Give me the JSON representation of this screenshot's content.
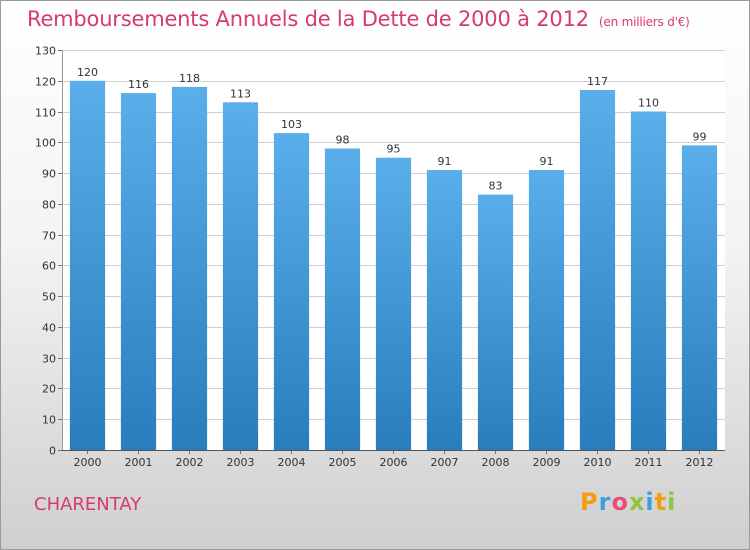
{
  "title": {
    "main": "Remboursements Annuels de la Dette de 2000 à 2012",
    "unit": "(en milliers d'€)"
  },
  "commune": "CHARENTAY",
  "logo": {
    "text": "Proxiti",
    "letters": [
      "P",
      "r",
      "o",
      "x",
      "i",
      "t",
      "i"
    ],
    "colors": [
      "#f39c12",
      "#3aa0dc",
      "#e94e77",
      "#8dc63f",
      "#3aa0dc",
      "#f39c12",
      "#8dc63f"
    ]
  },
  "chart_data": {
    "type": "bar",
    "title": "Remboursements Annuels de la Dette de 2000 à 2012",
    "xlabel": "",
    "ylabel": "",
    "categories": [
      "2000",
      "2001",
      "2002",
      "2003",
      "2004",
      "2005",
      "2006",
      "2007",
      "2008",
      "2009",
      "2010",
      "2011",
      "2012"
    ],
    "values": [
      120,
      116,
      118,
      113,
      103,
      98,
      95,
      91,
      83,
      91,
      117,
      110,
      99
    ],
    "ylim": [
      0,
      130
    ],
    "yticks": [
      0,
      10,
      20,
      30,
      40,
      50,
      60,
      70,
      80,
      90,
      100,
      110,
      120,
      130
    ],
    "grid": true,
    "bar_color_top": "#5aaeea",
    "bar_color_bottom": "#2a7dbd",
    "grid_color": "#d0d0d0"
  }
}
